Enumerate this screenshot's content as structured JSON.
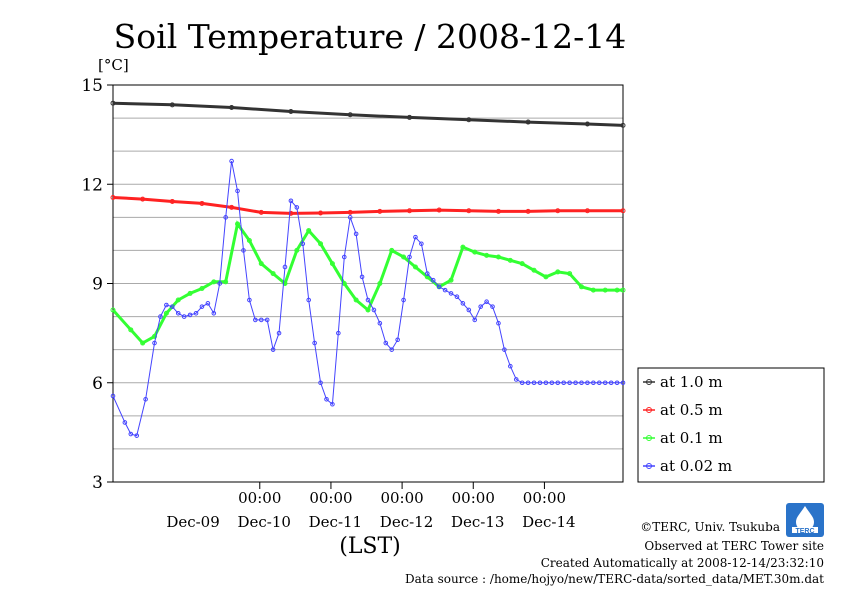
{
  "chart_data": {
    "type": "line",
    "title": "Soil Temperature / 2008-12-14",
    "ylabel": "[°C]",
    "xlabel": "(LST)",
    "ylim": [
      3,
      15
    ],
    "yticks": [
      3,
      6,
      9,
      12,
      15
    ],
    "xlim": [
      -20,
      152
    ],
    "x_unit": "hours since 2008-12-09 00:00 LST",
    "xticks": [
      {
        "x": 29.5,
        "time": "00:00",
        "date": "Dec-10"
      },
      {
        "x": 53.5,
        "time": "00:00",
        "date": "Dec-11"
      },
      {
        "x": 77.5,
        "time": "00:00",
        "date": "Dec-12"
      },
      {
        "x": 101.5,
        "time": "00:00",
        "date": "Dec-13"
      },
      {
        "x": 125.5,
        "time": "00:00",
        "date": "Dec-14"
      }
    ],
    "date_labels": [
      {
        "x": 7,
        "label": "Dec-09"
      },
      {
        "x": 31,
        "label": "Dec-10"
      },
      {
        "x": 55,
        "label": "Dec-11"
      },
      {
        "x": 79,
        "label": "Dec-12"
      },
      {
        "x": 103,
        "label": "Dec-13"
      },
      {
        "x": 127,
        "label": "Dec-14"
      }
    ],
    "series": [
      {
        "name": "at 1.0 m",
        "color": "#333333",
        "x": [
          -20,
          0,
          20,
          40,
          60,
          80,
          100,
          120,
          140,
          152
        ],
        "values": [
          14.45,
          14.4,
          14.32,
          14.2,
          14.1,
          14.02,
          13.95,
          13.88,
          13.82,
          13.78
        ]
      },
      {
        "name": "at 0.5 m",
        "color": "#ff2222",
        "x": [
          -20,
          -10,
          0,
          10,
          20,
          30,
          40,
          50,
          60,
          70,
          80,
          90,
          100,
          110,
          120,
          130,
          140,
          152
        ],
        "values": [
          11.6,
          11.55,
          11.48,
          11.42,
          11.3,
          11.15,
          11.12,
          11.13,
          11.15,
          11.18,
          11.2,
          11.22,
          11.2,
          11.18,
          11.18,
          11.2,
          11.2,
          11.2
        ]
      },
      {
        "name": "at 0.1 m",
        "color": "#33ff33",
        "x": [
          -20,
          -14,
          -10,
          -6,
          -2,
          2,
          6,
          10,
          14,
          18,
          22,
          26,
          30,
          34,
          38,
          42,
          46,
          50,
          54,
          58,
          62,
          66,
          70,
          74,
          78,
          82,
          86,
          90,
          94,
          98,
          102,
          106,
          110,
          114,
          118,
          122,
          126,
          130,
          134,
          138,
          142,
          146,
          150,
          152
        ],
        "values": [
          8.2,
          7.6,
          7.2,
          7.4,
          8.1,
          8.5,
          8.7,
          8.85,
          9.05,
          9.05,
          10.8,
          10.3,
          9.6,
          9.3,
          9.0,
          10.0,
          10.6,
          10.2,
          9.6,
          9.0,
          8.5,
          8.2,
          9.0,
          10.0,
          9.8,
          9.5,
          9.2,
          8.9,
          9.1,
          10.1,
          9.95,
          9.85,
          9.8,
          9.7,
          9.6,
          9.4,
          9.2,
          9.35,
          9.3,
          8.9,
          8.8,
          8.8,
          8.8,
          8.8
        ]
      },
      {
        "name": "at 0.02 m",
        "color": "#4444ff",
        "x": [
          -20,
          -16,
          -14,
          -12,
          -9,
          -6,
          -4,
          -2,
          0,
          2,
          4,
          6,
          8,
          10,
          12,
          14,
          16,
          18,
          20,
          22,
          24,
          26,
          28,
          30,
          32,
          34,
          36,
          38,
          40,
          42,
          44,
          46,
          48,
          50,
          52,
          54,
          56,
          58,
          60,
          62,
          64,
          66,
          68,
          70,
          72,
          74,
          76,
          78,
          80,
          82,
          84,
          86,
          88,
          90,
          92,
          94,
          96,
          98,
          100,
          102,
          104,
          106,
          108,
          110,
          112,
          114,
          116,
          118,
          120,
          122,
          124,
          126,
          128,
          130,
          132,
          134,
          136,
          138,
          140,
          142,
          144,
          146,
          148,
          150,
          152
        ],
        "values": [
          5.6,
          4.8,
          4.45,
          4.4,
          5.5,
          7.2,
          8.0,
          8.35,
          8.3,
          8.1,
          8.0,
          8.05,
          8.1,
          8.3,
          8.4,
          8.1,
          9.0,
          11.0,
          12.7,
          11.8,
          10.0,
          8.5,
          7.9,
          7.9,
          7.9,
          7.0,
          7.5,
          9.5,
          11.5,
          11.3,
          10.2,
          8.5,
          7.2,
          6.0,
          5.5,
          5.35,
          7.5,
          9.8,
          11.0,
          10.5,
          9.2,
          8.5,
          8.2,
          7.8,
          7.2,
          7.0,
          7.3,
          8.5,
          9.8,
          10.4,
          10.2,
          9.3,
          9.1,
          8.9,
          8.8,
          8.7,
          8.6,
          8.4,
          8.2,
          7.9,
          8.3,
          8.45,
          8.3,
          7.8,
          7.0,
          6.5,
          6.1,
          6.0,
          6.0,
          6.0,
          6.0,
          6.0,
          6.0,
          6.0,
          6.0,
          6.0,
          6.0,
          6.0,
          6.0,
          6.0,
          6.0,
          6.0,
          6.0,
          6.0,
          6.0
        ],
        "note": ""
      }
    ],
    "legend": "right",
    "grid": "horizontal"
  },
  "footer": {
    "copyright": "©TERC, Univ. Tsukuba",
    "observed": "Observed at TERC Tower site",
    "created": "Created Automatically at 2008-12-14/23:32:10",
    "source": "Data source : /home/hojyo/new/TERC-data/sorted_data/MET.30m.dat"
  },
  "logo": {
    "text": "TERC",
    "color": "#2a73c9"
  }
}
